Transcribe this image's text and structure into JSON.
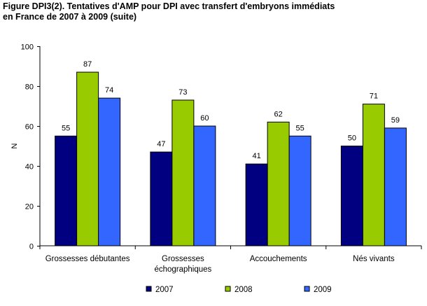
{
  "title_lines": [
    "Figure DPI3(2). Tentatives d'AMP pour DPI avec transfert d'embryons immédiats",
    "en France de 2007 à 2009 (suite)"
  ],
  "chart_data": {
    "type": "bar",
    "title": "Figure DPI3(2). Tentatives d'AMP pour DPI avec transfert d'embryons immédiats en France de 2007 à 2009 (suite)",
    "categories": [
      [
        "Grossesses débutantes"
      ],
      [
        "Grossesses",
        "échographiques"
      ],
      [
        "Accouchements"
      ],
      [
        "Nés vivants"
      ]
    ],
    "series": [
      {
        "name": "2007",
        "color": "#000080",
        "values": [
          55,
          47,
          41,
          50
        ]
      },
      {
        "name": "2008",
        "color": "#99CC00",
        "values": [
          87,
          73,
          62,
          71
        ]
      },
      {
        "name": "2009",
        "color": "#3366FF",
        "values": [
          74,
          60,
          55,
          59
        ]
      }
    ],
    "xlabel": "",
    "ylabel": "N",
    "ylim": [
      0,
      100
    ],
    "yticks": [
      0,
      20,
      40,
      60,
      80,
      100
    ],
    "grid": false,
    "legend_position": "bottom"
  }
}
